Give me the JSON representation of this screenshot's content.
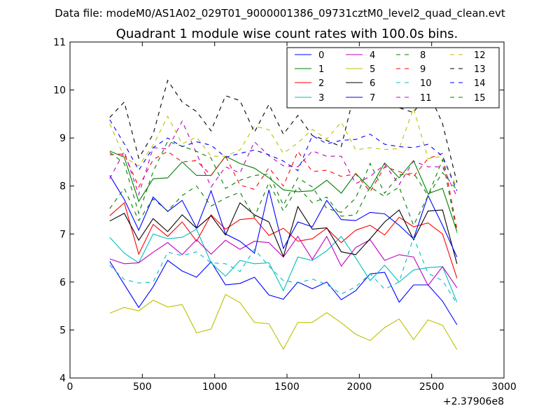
{
  "chart_data": {
    "type": "line",
    "suptitle": "Data file: modeM0/AS1A02_029T01_9000001386_09731cztM0_level2_quad_clean.evt",
    "title": "Quadrant 1 module wise count rates with 100.0s bins.",
    "xlabel": "",
    "ylabel": "",
    "x_offset_label": "+2.37906e8",
    "xlim": [
      0,
      3000
    ],
    "ylim": [
      4,
      11
    ],
    "x_ticks": [
      0,
      500,
      1000,
      1500,
      2000,
      2500,
      3000
    ],
    "x_tick_labels": [
      "0",
      "500",
      "1000",
      "1500",
      "2000",
      "2500",
      "3000"
    ],
    "y_ticks": [
      4,
      5,
      6,
      7,
      8,
      9,
      10,
      11
    ],
    "y_tick_labels": [
      "4",
      "5",
      "6",
      "7",
      "8",
      "9",
      "10",
      "11"
    ],
    "grid": false,
    "legend_position": "top-right",
    "x": [
      275,
      375,
      475,
      575,
      675,
      775,
      875,
      975,
      1075,
      1175,
      1275,
      1375,
      1475,
      1575,
      1675,
      1775,
      1875,
      1975,
      2075,
      2175,
      2275,
      2375,
      2475,
      2575,
      2675
    ],
    "series": [
      {
        "name": "0",
        "color": "#0000ff",
        "style": "solid",
        "values": [
          6.43,
          5.95,
          5.47,
          5.9,
          6.45,
          6.23,
          6.1,
          6.42,
          5.94,
          5.97,
          6.1,
          5.73,
          5.64,
          6.0,
          5.86,
          6.0,
          5.63,
          5.82,
          6.17,
          6.2,
          5.58,
          5.94,
          5.94,
          5.6,
          5.11
        ]
      },
      {
        "name": "1",
        "color": "#008000",
        "style": "solid",
        "values": [
          8.73,
          8.6,
          7.68,
          8.15,
          8.17,
          8.5,
          8.22,
          8.22,
          8.62,
          8.47,
          8.37,
          8.17,
          7.92,
          7.88,
          7.9,
          8.12,
          7.85,
          8.26,
          7.95,
          8.48,
          8.17,
          8.53,
          7.84,
          7.95,
          7.05
        ]
      },
      {
        "name": "2",
        "color": "#ff0000",
        "style": "solid",
        "values": [
          7.38,
          7.65,
          6.58,
          7.2,
          6.95,
          7.25,
          6.85,
          7.4,
          7.1,
          7.3,
          7.33,
          6.97,
          7.12,
          6.85,
          6.9,
          7.12,
          6.82,
          7.08,
          7.18,
          6.98,
          7.35,
          7.15,
          7.23,
          7.0,
          6.08
        ]
      },
      {
        "name": "3",
        "color": "#00bfbf",
        "style": "solid",
        "values": [
          6.93,
          6.6,
          6.4,
          7.0,
          6.9,
          6.93,
          7.1,
          6.4,
          6.12,
          6.45,
          6.38,
          6.4,
          5.82,
          6.52,
          6.45,
          6.65,
          6.95,
          6.5,
          6.03,
          6.35,
          6.0,
          6.25,
          6.3,
          6.32,
          5.58
        ]
      },
      {
        "name": "4",
        "color": "#bf00bf",
        "style": "solid",
        "values": [
          6.48,
          6.38,
          6.4,
          6.62,
          6.82,
          6.57,
          6.88,
          6.58,
          6.87,
          6.68,
          6.85,
          6.82,
          6.52,
          6.95,
          6.47,
          6.95,
          6.33,
          6.72,
          6.88,
          6.45,
          6.57,
          6.52,
          5.93,
          6.32,
          5.88
        ]
      },
      {
        "name": "5",
        "color": "#bfbf00",
        "style": "solid",
        "values": [
          5.35,
          5.47,
          5.4,
          5.62,
          5.48,
          5.53,
          4.94,
          5.02,
          5.74,
          5.57,
          5.16,
          5.13,
          4.6,
          5.16,
          5.16,
          5.36,
          5.15,
          4.91,
          4.78,
          5.05,
          5.23,
          4.8,
          5.21,
          5.1,
          4.59
        ]
      },
      {
        "name": "6",
        "color": "#000000",
        "style": "solid",
        "values": [
          7.27,
          7.43,
          6.87,
          7.32,
          7.05,
          7.4,
          7.12,
          7.38,
          6.98,
          7.65,
          7.4,
          7.25,
          6.53,
          7.57,
          7.1,
          7.13,
          6.63,
          6.57,
          6.9,
          7.25,
          7.5,
          6.88,
          7.48,
          7.5,
          6.38
        ]
      },
      {
        "name": "7",
        "color": "#0000ff",
        "style": "solid",
        "values": [
          8.22,
          7.72,
          7.08,
          7.77,
          7.47,
          7.7,
          7.13,
          7.9,
          7.0,
          6.85,
          6.6,
          7.92,
          6.7,
          7.25,
          7.15,
          7.7,
          7.3,
          7.28,
          7.45,
          7.42,
          7.18,
          6.9,
          7.8,
          7.18,
          6.52
        ]
      },
      {
        "name": "8",
        "color": "#008000",
        "style": "dashed",
        "values": [
          7.53,
          7.95,
          7.28,
          7.73,
          7.48,
          7.8,
          8.0,
          7.58,
          7.75,
          7.87,
          7.35,
          8.07,
          7.48,
          7.98,
          7.65,
          7.77,
          7.37,
          7.4,
          7.98,
          7.78,
          7.98,
          7.18,
          7.8,
          8.55,
          7.02
        ]
      },
      {
        "name": "9",
        "color": "#ff0000",
        "style": "dashed",
        "values": [
          8.65,
          8.67,
          7.98,
          8.55,
          8.72,
          8.5,
          8.53,
          8.22,
          8.62,
          8.02,
          7.93,
          8.38,
          8.0,
          8.72,
          8.3,
          8.33,
          8.2,
          8.25,
          7.88,
          8.4,
          8.3,
          8.2,
          8.57,
          8.68,
          7.1
        ]
      },
      {
        "name": "10",
        "color": "#00bfbf",
        "style": "dashed",
        "values": [
          6.35,
          6.05,
          5.98,
          6.0,
          6.62,
          6.55,
          6.63,
          6.4,
          6.38,
          6.22,
          6.68,
          6.33,
          6.03,
          5.98,
          6.06,
          5.95,
          5.75,
          5.9,
          6.17,
          5.85,
          6.0,
          6.93,
          6.18,
          6.03,
          5.55
        ]
      },
      {
        "name": "11",
        "color": "#bf00bf",
        "style": "dashed",
        "values": [
          8.15,
          8.72,
          7.82,
          8.8,
          8.77,
          9.35,
          8.68,
          7.98,
          8.4,
          8.27,
          8.92,
          8.63,
          8.42,
          8.4,
          8.73,
          8.62,
          8.62,
          8.05,
          8.2,
          8.45,
          8.03,
          8.52,
          8.4,
          8.4,
          7.78
        ]
      },
      {
        "name": "12",
        "color": "#bfbf00",
        "style": "dashed",
        "values": [
          9.3,
          8.6,
          8.42,
          8.85,
          9.45,
          8.88,
          9.02,
          8.62,
          8.62,
          8.75,
          9.25,
          9.17,
          8.68,
          8.9,
          9.18,
          8.98,
          9.33,
          8.75,
          8.8,
          8.76,
          8.78,
          9.62,
          8.57,
          8.62,
          7.97
        ]
      },
      {
        "name": "13",
        "color": "#000000",
        "style": "dashed",
        "values": [
          9.43,
          9.75,
          8.58,
          9.08,
          10.2,
          9.75,
          9.55,
          9.15,
          9.88,
          9.78,
          9.12,
          9.7,
          9.08,
          9.47,
          9.05,
          8.95,
          8.82,
          10.05,
          9.98,
          10.08,
          9.63,
          9.53,
          9.98,
          9.3,
          8.07
        ]
      },
      {
        "name": "14",
        "color": "#0000ff",
        "style": "dashed",
        "values": [
          9.38,
          8.88,
          8.33,
          8.8,
          9.0,
          8.82,
          8.92,
          8.85,
          8.6,
          8.68,
          8.75,
          8.65,
          8.52,
          8.32,
          9.05,
          8.88,
          8.95,
          8.97,
          9.08,
          8.87,
          8.82,
          8.8,
          8.87,
          8.62,
          7.9
        ]
      },
      {
        "name": "15",
        "color": "#008000",
        "style": "dashed",
        "values": [
          8.7,
          8.47,
          7.43,
          8.3,
          8.93,
          8.83,
          8.72,
          8.58,
          7.95,
          8.12,
          8.22,
          8.25,
          7.6,
          8.17,
          7.98,
          7.53,
          7.45,
          7.75,
          8.47,
          7.85,
          8.23,
          8.27,
          7.8,
          8.28,
          7.92
        ]
      }
    ]
  }
}
